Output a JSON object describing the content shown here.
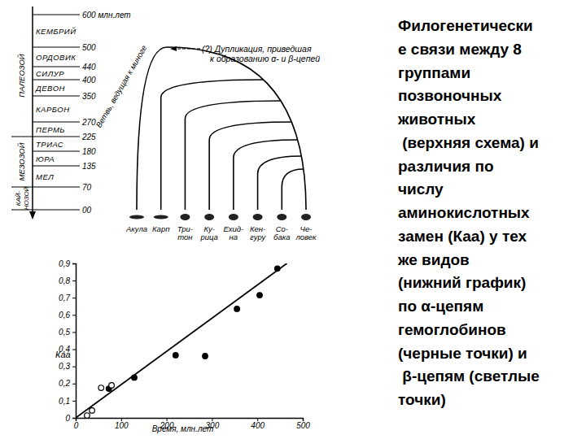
{
  "chart_data": {
    "type": "scatter",
    "xlabel": "Время, млн.лет",
    "ylabel": "Каа",
    "xlim": [
      0,
      500
    ],
    "xticks": [
      0,
      100,
      200,
      300,
      400,
      500
    ],
    "ylim": [
      0,
      0.9
    ],
    "yticks": [
      0,
      {
        "value": 0.1,
        "label": "0,1"
      },
      {
        "value": 0.2,
        "label": "0,2"
      },
      {
        "value": 0.3,
        "label": "0,3"
      },
      {
        "value": 0.4,
        "label": "0,4"
      },
      {
        "value": 0.5,
        "label": "0,5"
      },
      {
        "value": 0.6,
        "label": "0,6"
      },
      {
        "value": 0.7,
        "label": "0,7"
      },
      {
        "value": 0.8,
        "label": "0,8"
      },
      {
        "value": 0.9,
        "label": "0,9"
      }
    ],
    "series": [
      {
        "type": "scatter",
        "marker": "filled",
        "color": "#000000",
        "x": [
          73,
          129,
          220,
          285,
          355,
          405,
          444
        ],
        "values": [
          0.17,
          0.235,
          0.365,
          0.36,
          0.635,
          0.715,
          0.87
        ]
      },
      {
        "type": "scatter",
        "marker": "open",
        "color": "#000000",
        "x": [
          25,
          36,
          56,
          79
        ],
        "values": [
          0.014,
          0.043,
          0.175,
          0.19
        ]
      },
      {
        "type": "line",
        "line_style": "solid",
        "color": "#000000",
        "x": [
          0,
          465
        ],
        "values": [
          0,
          0.9
        ]
      }
    ]
  },
  "diagram": {
    "time_range": [
      600,
      0
    ],
    "time_ticks": [
      {
        "value": 600,
        "label": "600 млн.лет"
      },
      500,
      440,
      400,
      350,
      270,
      225,
      180,
      135,
      70,
      {
        "value": 0,
        "label": "00"
      }
    ],
    "periods": [
      {
        "name": "КЕМБРИЙ",
        "from": 600,
        "to": 500
      },
      {
        "name": "ОРДОВИК",
        "from": 500,
        "to": 440
      },
      {
        "name": "СИЛУР",
        "from": 440,
        "to": 400
      },
      {
        "name": "ДЕВОН",
        "from": 400,
        "to": 350
      },
      {
        "name": "КАРБОН",
        "from": 350,
        "to": 270
      },
      {
        "name": "ПЕРМЬ",
        "from": 270,
        "to": 225
      },
      {
        "name": "ТРИАС",
        "from": 225,
        "to": 180
      },
      {
        "name": "ЮРА",
        "from": 180,
        "to": 135
      },
      {
        "name": "МЕЛ",
        "from": 135,
        "to": 70
      }
    ],
    "eras": [
      {
        "lines": [
          "ПАЛЕОЗОЙ"
        ],
        "from": 600,
        "to": 225
      },
      {
        "lines": [
          "МЕЗОЗОЙ"
        ],
        "from": 225,
        "to": 70
      },
      {
        "lines": [
          "КАЙ-",
          "НОЗОЙ"
        ],
        "from": 70,
        "to": 0
      }
    ],
    "root": 500,
    "root_note": [
      "(?) Дупликация, приведшая",
      "к образованию α- и β-цепей"
    ],
    "branch_label": "Ветвь, ведущая к миноге",
    "species": [
      {
        "label": [
          "Акула"
        ],
        "divergence": 500
      },
      {
        "label": [
          "Карп"
        ],
        "divergence": 400
      },
      {
        "label": [
          "Три-",
          "тон"
        ],
        "divergence": 335
      },
      {
        "label": [
          "Ку-",
          "рица"
        ],
        "divergence": 270
      },
      {
        "label": [
          "Ехид-",
          "на"
        ],
        "divergence": 215
      },
      {
        "label": [
          "Кен-",
          "гуру"
        ],
        "divergence": 165
      },
      {
        "label": [
          "Со-",
          "бака"
        ],
        "divergence": 125
      },
      {
        "label": [
          "Че-",
          "ловек"
        ],
        "divergence": null
      }
    ]
  },
  "caption": {
    "lines": [
      "Филогенетически",
      "е связи между 8",
      "группами",
      "позвоночных",
      "животных",
      " (верхняя схема) и",
      "различия по",
      "числу",
      "аминокислотных",
      "замен (Каа) у тех",
      "же видов",
      "(нижний график)",
      "по α-цепям",
      "гемоглобинов",
      "(черные точки) и",
      " β-цепям (светлые",
      "точки)"
    ]
  }
}
